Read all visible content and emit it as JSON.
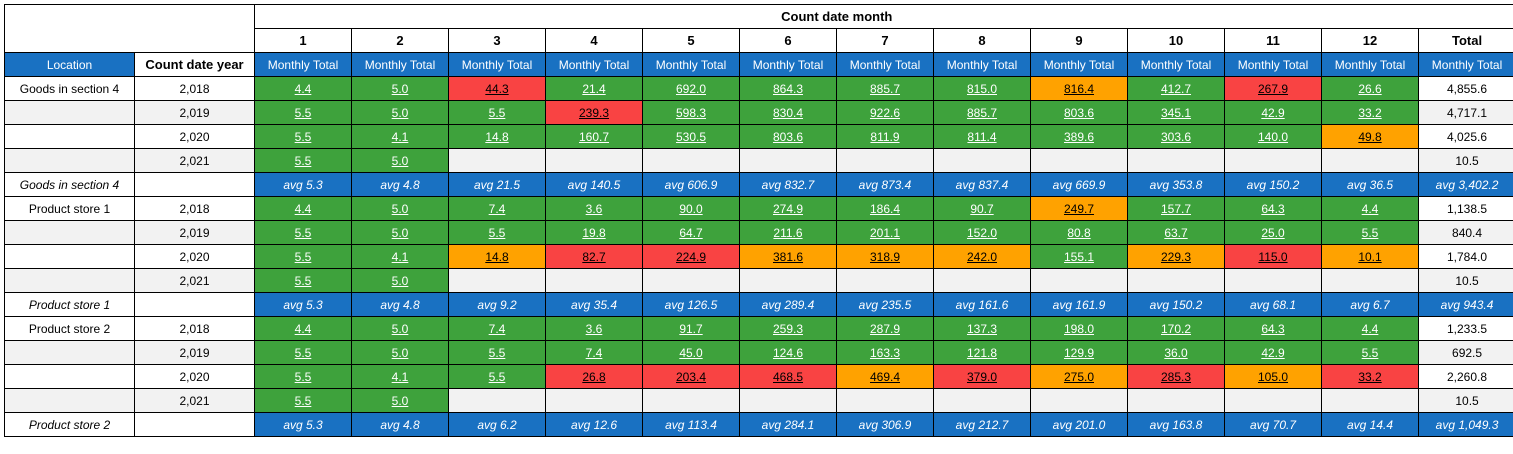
{
  "table": {
    "month_header": "Count date month",
    "months": [
      "1",
      "2",
      "3",
      "4",
      "5",
      "6",
      "7",
      "8",
      "9",
      "10",
      "11",
      "12"
    ],
    "total_header": "Total",
    "location_header": "Location",
    "year_header": "Count date year",
    "monthly_total": "Monthly Total",
    "colors": {
      "header_blue": "#1971C2",
      "ok_green": "#3EA23C",
      "alert_red": "#F94343",
      "warn_orange": "#FFA200",
      "stripe_gray": "#F2F2F2"
    },
    "groups": [
      {
        "name": "Goods in section 4",
        "years": [
          {
            "year": "2,018",
            "values": [
              "4.4",
              "5.0",
              "44.3",
              "21.4",
              "692.0",
              "864.3",
              "885.7",
              "815.0",
              "816.4",
              "412.7",
              "267.9",
              "26.6"
            ],
            "colors": [
              "g",
              "g",
              "r",
              "g",
              "g",
              "g",
              "g",
              "g",
              "o",
              "g",
              "r",
              "g"
            ],
            "total": "4,855.6"
          },
          {
            "year": "2,019",
            "values": [
              "5.5",
              "5.0",
              "5.5",
              "239.3",
              "598.3",
              "830.4",
              "922.6",
              "885.7",
              "803.6",
              "345.1",
              "42.9",
              "33.2"
            ],
            "colors": [
              "g",
              "g",
              "g",
              "r",
              "g",
              "g",
              "g",
              "g",
              "g",
              "g",
              "g",
              "g"
            ],
            "total": "4,717.1"
          },
          {
            "year": "2,020",
            "values": [
              "5.5",
              "4.1",
              "14.8",
              "160.7",
              "530.5",
              "803.6",
              "811.9",
              "811.4",
              "389.6",
              "303.6",
              "140.0",
              "49.8"
            ],
            "colors": [
              "g",
              "g",
              "g",
              "g",
              "g",
              "g",
              "g",
              "g",
              "g",
              "g",
              "g",
              "o"
            ],
            "total": "4,025.6"
          },
          {
            "year": "2,021",
            "values": [
              "5.5",
              "5.0",
              "",
              "",
              "",
              "",
              "",
              "",
              "",
              "",
              "",
              ""
            ],
            "colors": [
              "g",
              "g",
              "",
              "",
              "",
              "",
              "",
              "",
              "",
              "",
              "",
              ""
            ],
            "total": "10.5"
          }
        ],
        "avg": {
          "label": "Goods in section 4",
          "values": [
            "avg 5.3",
            "avg 4.8",
            "avg 21.5",
            "avg 140.5",
            "avg 606.9",
            "avg 832.7",
            "avg 873.4",
            "avg 837.4",
            "avg 669.9",
            "avg 353.8",
            "avg 150.2",
            "avg 36.5"
          ],
          "total": "avg 3,402.2"
        }
      },
      {
        "name": "Product store 1",
        "years": [
          {
            "year": "2,018",
            "values": [
              "4.4",
              "5.0",
              "7.4",
              "3.6",
              "90.0",
              "274.9",
              "186.4",
              "90.7",
              "249.7",
              "157.7",
              "64.3",
              "4.4"
            ],
            "colors": [
              "g",
              "g",
              "g",
              "g",
              "g",
              "g",
              "g",
              "g",
              "o",
              "g",
              "g",
              "g"
            ],
            "total": "1,138.5"
          },
          {
            "year": "2,019",
            "values": [
              "5.5",
              "5.0",
              "5.5",
              "19.8",
              "64.7",
              "211.6",
              "201.1",
              "152.0",
              "80.8",
              "63.7",
              "25.0",
              "5.5"
            ],
            "colors": [
              "g",
              "g",
              "g",
              "g",
              "g",
              "g",
              "g",
              "g",
              "g",
              "g",
              "g",
              "g"
            ],
            "total": "840.4"
          },
          {
            "year": "2,020",
            "values": [
              "5.5",
              "4.1",
              "14.8",
              "82.7",
              "224.9",
              "381.6",
              "318.9",
              "242.0",
              "155.1",
              "229.3",
              "115.0",
              "10.1"
            ],
            "colors": [
              "g",
              "g",
              "o",
              "r",
              "r",
              "o",
              "o",
              "o",
              "g",
              "o",
              "r",
              "o"
            ],
            "total": "1,784.0"
          },
          {
            "year": "2,021",
            "values": [
              "5.5",
              "5.0",
              "",
              "",
              "",
              "",
              "",
              "",
              "",
              "",
              "",
              ""
            ],
            "colors": [
              "g",
              "g",
              "",
              "",
              "",
              "",
              "",
              "",
              "",
              "",
              "",
              ""
            ],
            "total": "10.5"
          }
        ],
        "avg": {
          "label": "Product store 1",
          "values": [
            "avg 5.3",
            "avg 4.8",
            "avg 9.2",
            "avg 35.4",
            "avg 126.5",
            "avg 289.4",
            "avg 235.5",
            "avg 161.6",
            "avg 161.9",
            "avg 150.2",
            "avg 68.1",
            "avg 6.7"
          ],
          "total": "avg 943.4"
        }
      },
      {
        "name": "Product store 2",
        "years": [
          {
            "year": "2,018",
            "values": [
              "4.4",
              "5.0",
              "7.4",
              "3.6",
              "91.7",
              "259.3",
              "287.9",
              "137.3",
              "198.0",
              "170.2",
              "64.3",
              "4.4"
            ],
            "colors": [
              "g",
              "g",
              "g",
              "g",
              "g",
              "g",
              "g",
              "g",
              "g",
              "g",
              "g",
              "g"
            ],
            "total": "1,233.5"
          },
          {
            "year": "2,019",
            "values": [
              "5.5",
              "5.0",
              "5.5",
              "7.4",
              "45.0",
              "124.6",
              "163.3",
              "121.8",
              "129.9",
              "36.0",
              "42.9",
              "5.5"
            ],
            "colors": [
              "g",
              "g",
              "g",
              "g",
              "g",
              "g",
              "g",
              "g",
              "g",
              "g",
              "g",
              "g"
            ],
            "total": "692.5"
          },
          {
            "year": "2,020",
            "values": [
              "5.5",
              "4.1",
              "5.5",
              "26.8",
              "203.4",
              "468.5",
              "469.4",
              "379.0",
              "275.0",
              "285.3",
              "105.0",
              "33.2"
            ],
            "colors": [
              "g",
              "g",
              "g",
              "r",
              "r",
              "r",
              "o",
              "r",
              "o",
              "r",
              "o",
              "r"
            ],
            "total": "2,260.8"
          },
          {
            "year": "2,021",
            "values": [
              "5.5",
              "5.0",
              "",
              "",
              "",
              "",
              "",
              "",
              "",
              "",
              "",
              ""
            ],
            "colors": [
              "g",
              "g",
              "",
              "",
              "",
              "",
              "",
              "",
              "",
              "",
              "",
              ""
            ],
            "total": "10.5"
          }
        ],
        "avg": {
          "label": "Product store 2",
          "values": [
            "avg 5.3",
            "avg 4.8",
            "avg 6.2",
            "avg 12.6",
            "avg 113.4",
            "avg 284.1",
            "avg 306.9",
            "avg 212.7",
            "avg 201.0",
            "avg 163.8",
            "avg 70.7",
            "avg 14.4"
          ],
          "total": "avg 1,049.3"
        }
      }
    ]
  }
}
